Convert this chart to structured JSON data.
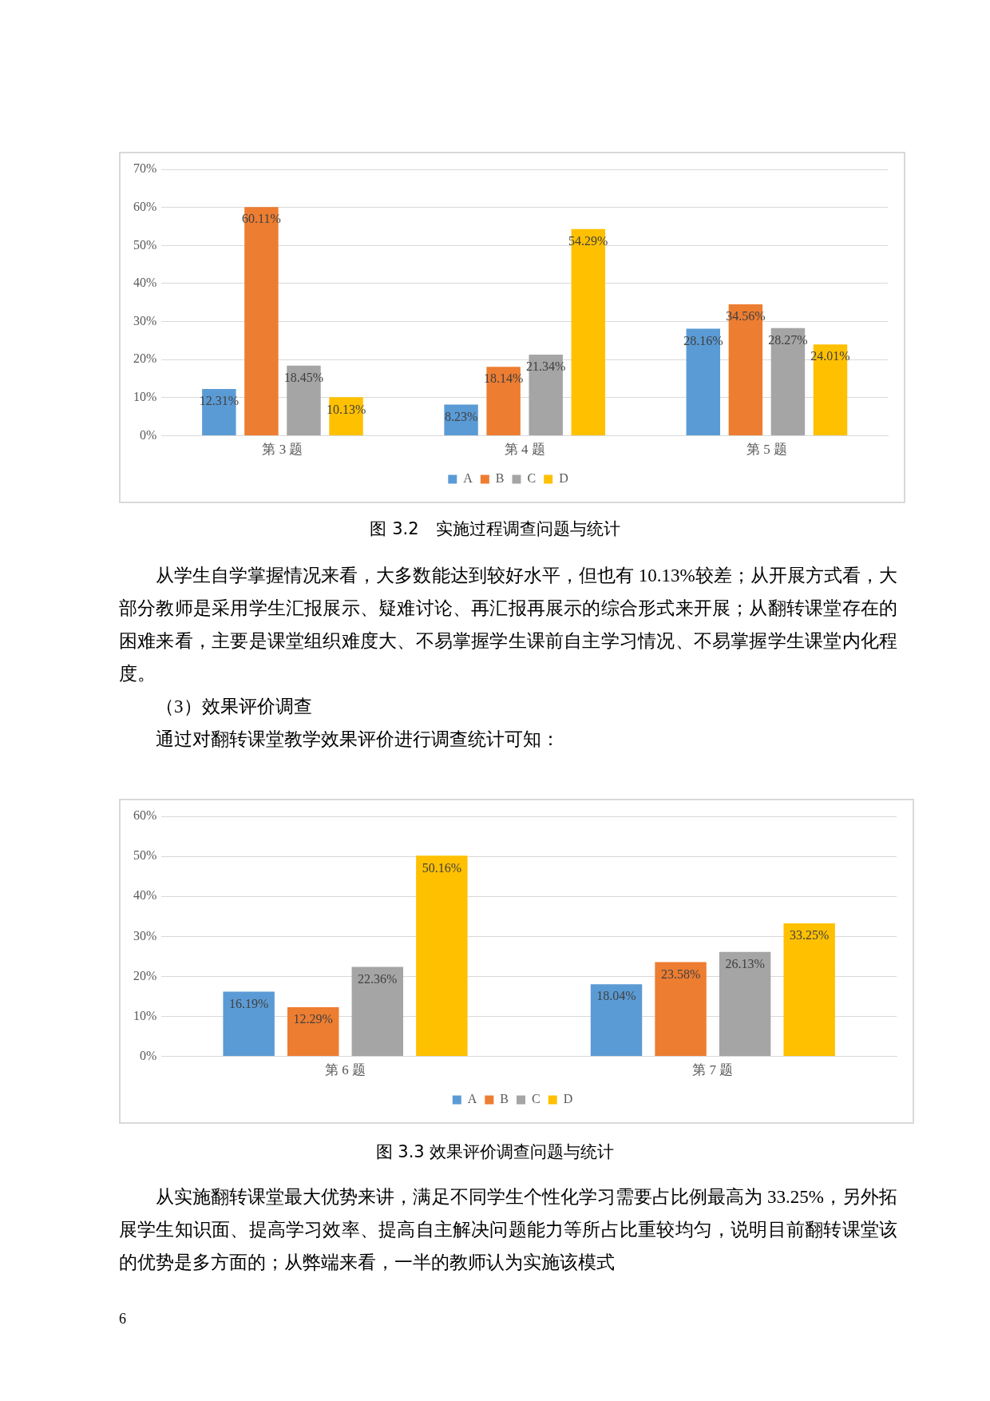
{
  "chart_data": [
    {
      "type": "bar",
      "title": "图 3.2　实施过程调查问题与统计",
      "categories": [
        "第 3 题",
        "第 4 题",
        "第 5 题"
      ],
      "series": [
        {
          "name": "A",
          "color": "#5b9bd5",
          "values": [
            12.31,
            8.23,
            28.16
          ],
          "value_labels": [
            "12.31%",
            "8.23%",
            "28.16%"
          ]
        },
        {
          "name": "B",
          "color": "#ed7d31",
          "values": [
            60.11,
            18.14,
            34.56
          ],
          "value_labels": [
            "60.11%",
            "18.14%",
            "34.56%"
          ]
        },
        {
          "name": "C",
          "color": "#a5a5a5",
          "values": [
            18.45,
            21.34,
            28.27
          ],
          "value_labels": [
            "18.45%",
            "21.34%",
            "28.27%"
          ]
        },
        {
          "name": "D",
          "color": "#ffc000",
          "values": [
            10.13,
            54.29,
            24.01
          ],
          "value_labels": [
            "10.13%",
            "54.29%",
            "24.01%"
          ]
        }
      ],
      "ylim": [
        0,
        70
      ],
      "yticks": [
        {
          "value": 0,
          "label": "0%"
        },
        {
          "value": 10,
          "label": "10%"
        },
        {
          "value": 20,
          "label": "20%"
        },
        {
          "value": 30,
          "label": "30%"
        },
        {
          "value": 40,
          "label": "40%"
        },
        {
          "value": 50,
          "label": "50%"
        },
        {
          "value": 60,
          "label": "60%"
        },
        {
          "value": 70,
          "label": "70%"
        }
      ],
      "grid": "y",
      "legend": "bottom",
      "annotations": [
        "从学生自学掌握情况来看，大多数能达到较好水平，但也有 10.13%较差；从开展方式看，大部分教师是采用学生汇报展示、疑难讨论、再汇报再展示的综合形式来开展；从翻转课堂存在的困难来看，主要是课堂组织难度大、不易掌握学生课前自主学习情况、不易掌握学生课堂内化程度。",
        "（3）效果评价调查",
        "通过对翻转课堂教学效果评价进行调查统计可知："
      ]
    },
    {
      "type": "bar",
      "title": "图 3.3 效果评价调查问题与统计",
      "categories": [
        "第 6 题",
        "第 7 题"
      ],
      "series": [
        {
          "name": "A",
          "color": "#5b9bd5",
          "values": [
            16.19,
            18.04
          ],
          "value_labels": [
            "16.19%",
            "18.04%"
          ]
        },
        {
          "name": "B",
          "color": "#ed7d31",
          "values": [
            12.29,
            23.58
          ],
          "value_labels": [
            "12.29%",
            "23.58%"
          ]
        },
        {
          "name": "C",
          "color": "#a5a5a5",
          "values": [
            22.36,
            26.13
          ],
          "value_labels": [
            "22.36%",
            "26.13%"
          ]
        },
        {
          "name": "D",
          "color": "#ffc000",
          "values": [
            50.16,
            33.25
          ],
          "value_labels": [
            "50.16%",
            "33.25%"
          ]
        }
      ],
      "ylim": [
        0,
        60
      ],
      "yticks": [
        {
          "value": 0,
          "label": "0%"
        },
        {
          "value": 10,
          "label": "10%"
        },
        {
          "value": 20,
          "label": "20%"
        },
        {
          "value": 30,
          "label": "30%"
        },
        {
          "value": 40,
          "label": "40%"
        },
        {
          "value": 50,
          "label": "50%"
        },
        {
          "value": 60,
          "label": "60%"
        }
      ],
      "grid": "y",
      "legend": "bottom",
      "annotations": [
        "从实施翻转课堂最大优势来讲，满足不同学生个性化学习需要占比例最高为 33.25%，另外拓展学生知识面、提高学习效率、提高自主解决问题能力等所占比重较均匀，说明目前翻转课堂该的优势是多方面的；从弊端来看，一半的教师认为实施该模式",
        "6"
      ]
    }
  ]
}
